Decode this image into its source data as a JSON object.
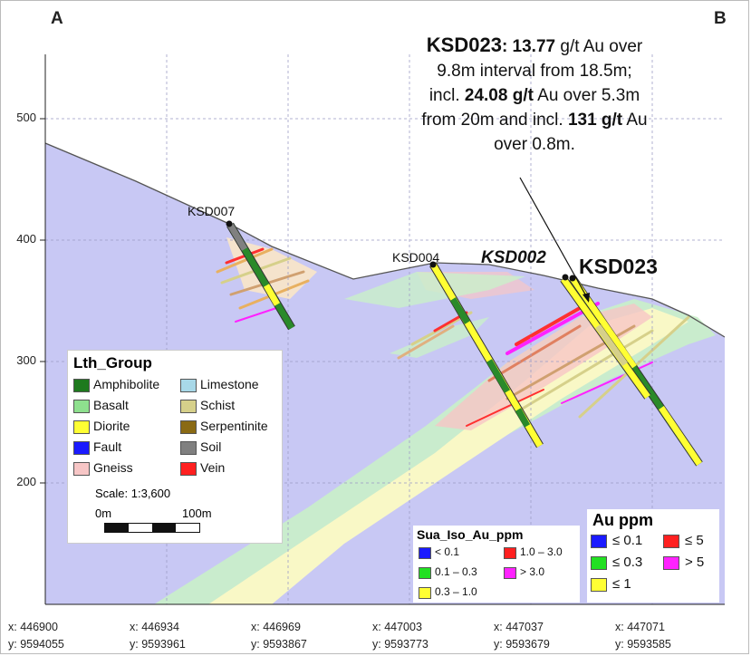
{
  "corners": {
    "left": "A",
    "right": "B"
  },
  "y_ticks": [
    "500",
    "400",
    "300",
    "200"
  ],
  "x_ticks": [
    {
      "x": "x: 446900",
      "y": "y: 9594055"
    },
    {
      "x": "x: 446934",
      "y": "y: 9593961"
    },
    {
      "x": "x: 446969",
      "y": "y: 9593867"
    },
    {
      "x": "x: 447003",
      "y": "y: 9593773"
    },
    {
      "x": "x: 447037",
      "y": "y: 9593679"
    },
    {
      "x": "x: 447071",
      "y": "y: 9593585"
    }
  ],
  "holes": {
    "ksd007": "KSD007",
    "ksd004": "KSD004",
    "ksd002": "KSD002",
    "ksd023": "KSD023"
  },
  "callout": {
    "hole": "KSD023",
    "p1": ": ",
    "v1": "13.77",
    "p2": " g/t Au over",
    "line2": "9.8m interval from 18.5m;",
    "p3": "incl. ",
    "v2": "24.08 g/t",
    "p4": " Au over 5.3m",
    "p5": "from 20m and incl. ",
    "v3": "131 g/t",
    "p6": " Au",
    "line5": "over 0.8m."
  },
  "lith_legend": {
    "title": "Lth_Group",
    "items": [
      {
        "label": "Amphibolite",
        "color": "#1e7a1e"
      },
      {
        "label": "Basalt",
        "color": "#8ee08e"
      },
      {
        "label": "Diorite",
        "color": "#ffff33"
      },
      {
        "label": "Fault",
        "color": "#1a1aff"
      },
      {
        "label": "Gneiss",
        "color": "#f7c6c6"
      },
      {
        "label": "Limestone",
        "color": "#a8d8e8"
      },
      {
        "label": "Schist",
        "color": "#d6d08a"
      },
      {
        "label": "Serpentinite",
        "color": "#8a6a14"
      },
      {
        "label": "Soil",
        "color": "#808080"
      },
      {
        "label": "Vein",
        "color": "#ff2020"
      }
    ],
    "scale": "Scale: 1:3,600",
    "scale_start": "0m",
    "scale_end": "100m"
  },
  "sua_legend": {
    "title": "Sua_Iso_Au_ppm",
    "items": [
      {
        "label": "< 0.1",
        "color": "#1a1aff"
      },
      {
        "label": "1.0 – 3.0",
        "color": "#ff2020"
      },
      {
        "label": "0.1 – 0.3",
        "color": "#22e022"
      },
      {
        "label": "> 3.0",
        "color": "#ff22ff"
      },
      {
        "label": "0.3 – 1.0",
        "color": "#ffff33"
      }
    ]
  },
  "au_legend": {
    "title": "Au ppm",
    "items": [
      {
        "label": "≤ 0.1",
        "color": "#1a1aff"
      },
      {
        "label": "≤ 5",
        "color": "#ff2020"
      },
      {
        "label": "≤ 0.3",
        "color": "#22e022"
      },
      {
        "label": "> 5",
        "color": "#ff22ff"
      },
      {
        "label": "≤ 1",
        "color": "#ffff33"
      }
    ]
  },
  "colors": {
    "ground": "#c8c8f4",
    "gneiss_halo": "#f7c6c6",
    "basalt_halo": "#c6f0c6",
    "diorite_halo": "#fafac8"
  }
}
